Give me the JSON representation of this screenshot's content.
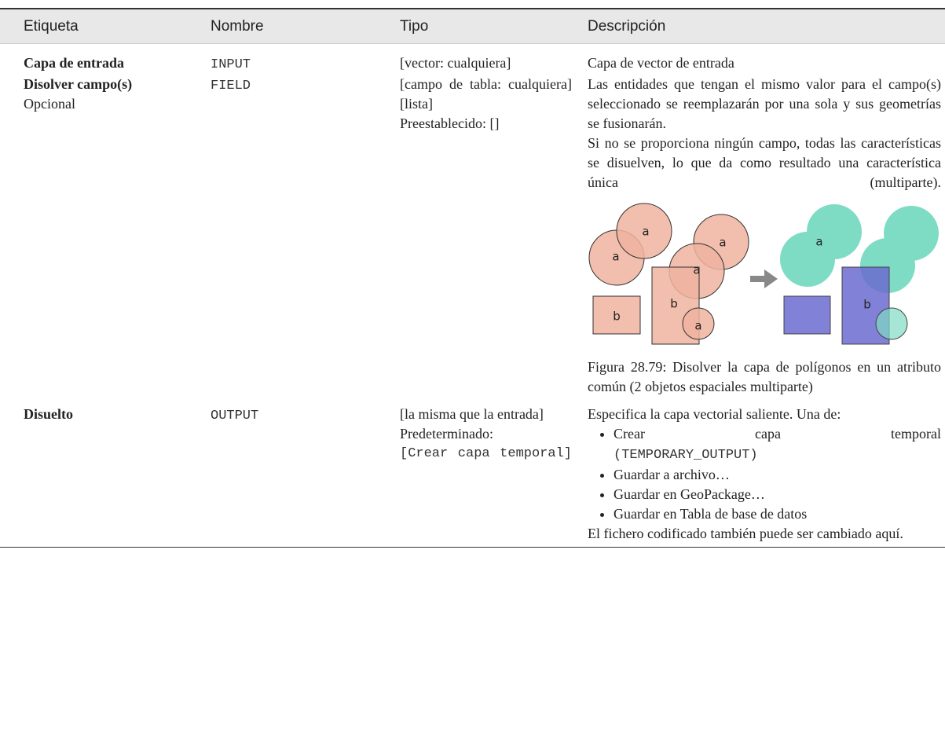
{
  "header": [
    "Etiqueta",
    "Nombre",
    "Tipo",
    "Descripción"
  ],
  "rows": [
    {
      "label": "Capa de entrada",
      "name": "INPUT",
      "type": [
        "[vector: cualquiera]"
      ],
      "description": [
        "Capa de vector de entrada"
      ]
    },
    {
      "label": "Disolver campo(s)",
      "optional": "Opcional",
      "name": "FIELD",
      "type": [
        "[campo de tabla: cualquiera] [lista]",
        "Preestablecido: []"
      ],
      "description": [
        "Las entidades que tengan el mismo valor para el campo(s) seleccionado se reemplazarán por una sola y sus geometrías se fusionarán.",
        "Si no se proporciona ningún campo, todas las características se disuelven, lo que da como resultado una característica única (multiparte)."
      ],
      "figure": {
        "labels": [
          "a",
          "a",
          "a",
          "a",
          "b",
          "b",
          "a",
          "a",
          "b"
        ],
        "caption": "Figura 28.79: Disolver la capa de polígonos en un atributo común (2 objetos espaciales multiparte)"
      }
    },
    {
      "label": "Disuelto",
      "name": "OUTPUT",
      "type": [
        "[la misma que la entrada]",
        "Predeterminado:"
      ],
      "type_code": "[Crear capa temporal]",
      "description": [
        "Especifica la capa vectorial saliente. Una de:"
      ],
      "options": [
        [
          "Crear capa temporal",
          "(TEMPORARY_OUTPUT)"
        ],
        [
          "Guardar a archivo…"
        ],
        [
          "Guardar en GeoPackage…"
        ],
        [
          "Guardar en Tabla de base de datos"
        ]
      ],
      "note": "El fichero codificado también puede ser cambiado aquí."
    }
  ]
}
